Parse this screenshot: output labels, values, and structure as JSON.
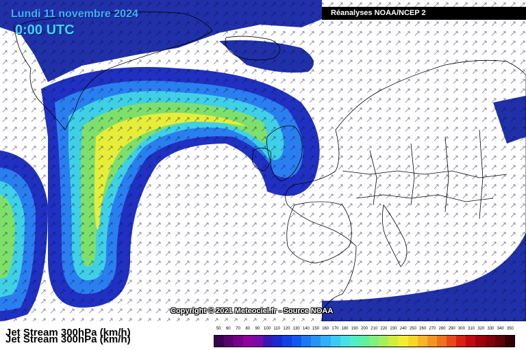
{
  "header": {
    "date": "Lundi 11 novembre 2024",
    "time": "0:00 UTC",
    "source": "Réanalyses NOAA/NCEP 2"
  },
  "map": {
    "copyright": "Copyright © 2021 Meteociel.fr - Source NOAA",
    "title": "Jet Stream 300hPa (km/h)"
  },
  "legend": {
    "unit": "km/h",
    "labels": [
      "50",
      "60",
      "70",
      "80",
      "90",
      "100",
      "110",
      "120",
      "130",
      "140",
      "150",
      "160",
      "170",
      "180",
      "190",
      "200",
      "210",
      "220",
      "230",
      "240",
      "250",
      "260",
      "270",
      "280",
      "290",
      "300",
      "310",
      "320",
      "330",
      "340",
      "350"
    ],
    "colors": [
      "#3a0050",
      "#5a006e",
      "#780088",
      "#92009e",
      "#7a0aa8",
      "#3a18b8",
      "#1a2ad0",
      "#1040e6",
      "#0e5af0",
      "#1c78f4",
      "#2694f6",
      "#30b0f8",
      "#3ccaf4",
      "#48e0e6",
      "#52ecc6",
      "#5cf2a0",
      "#80f080",
      "#a6ee5c",
      "#cfee3e",
      "#f0ee2e",
      "#f8d628",
      "#f8b624",
      "#f49420",
      "#f0701c",
      "#e84818",
      "#d82014",
      "#c00a10",
      "#a0000c",
      "#80000a",
      "#600008",
      "#300004"
    ]
  }
}
